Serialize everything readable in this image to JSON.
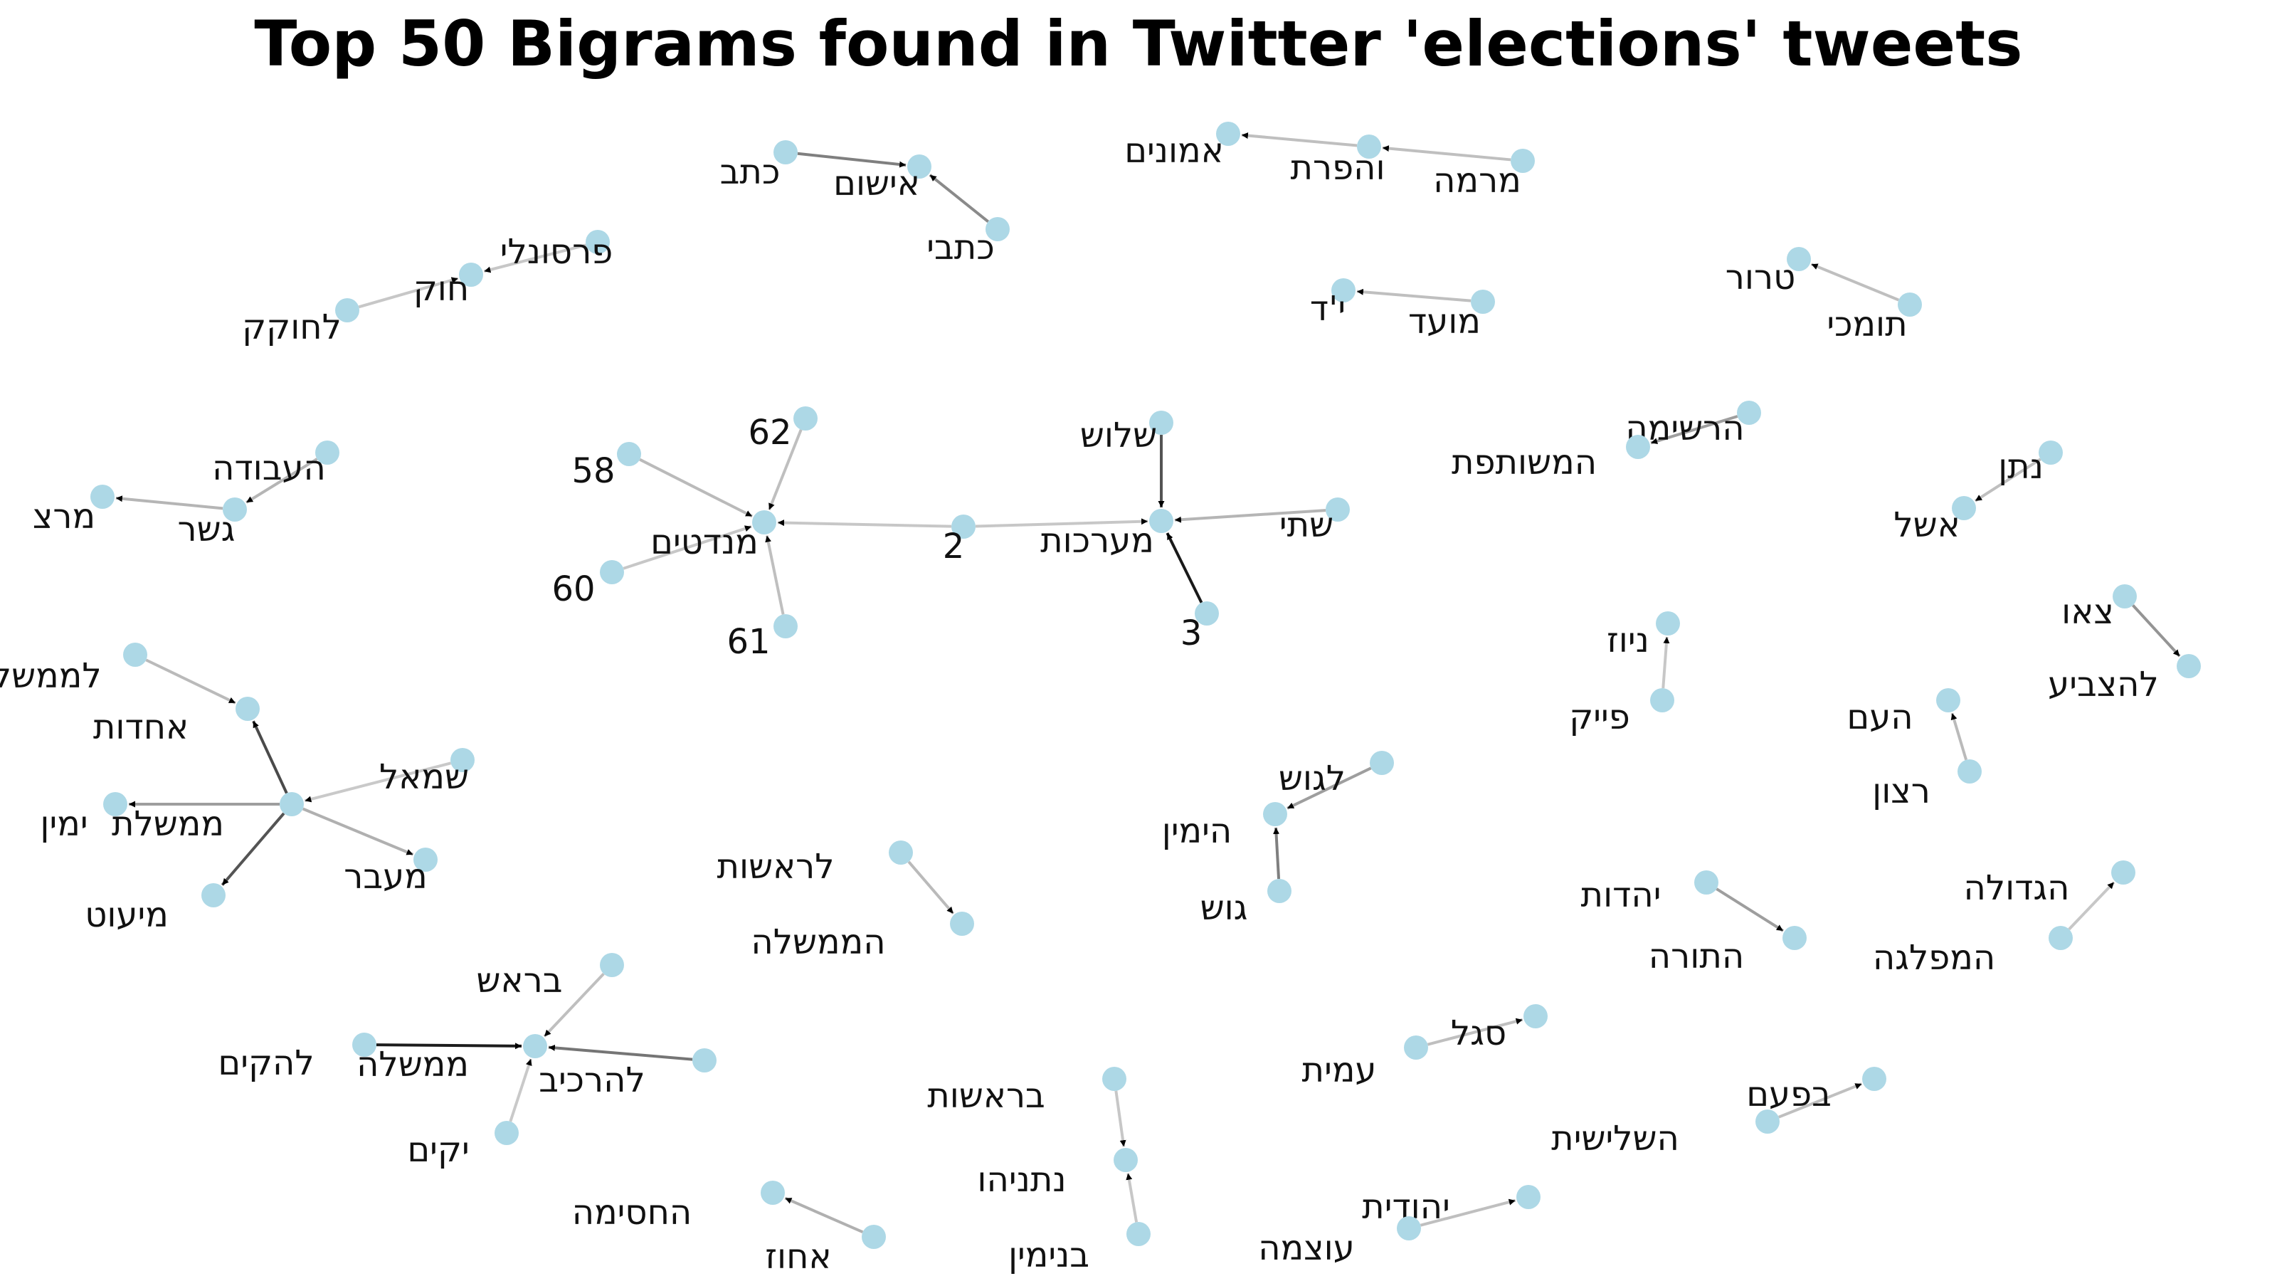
{
  "title": "Top 50 Bigrams found in Twitter 'elections' tweets",
  "colors": {
    "node": "#add8e6",
    "edge": "#000000",
    "text": "#111111",
    "background": "#ffffff"
  },
  "nodes": [
    {
      "id": "katav",
      "label": "כתב"
    },
    {
      "id": "ishum",
      "label": "אישום"
    },
    {
      "id": "kitvei",
      "label": "כתבי"
    },
    {
      "id": "emunim",
      "label": "אמונים"
    },
    {
      "id": "vehafarat",
      "label": "והפרת"
    },
    {
      "id": "mirma",
      "label": "מרמה"
    },
    {
      "id": "personali",
      "label": "פרסונלי"
    },
    {
      "id": "chok",
      "label": "חוק"
    },
    {
      "id": "lechokek",
      "label": "לחוקק"
    },
    {
      "id": "yud",
      "label": "י'ד"
    },
    {
      "id": "moed",
      "label": "מועד"
    },
    {
      "id": "teror",
      "label": "טרור"
    },
    {
      "id": "tomchei",
      "label": "תומכי"
    },
    {
      "id": "haavoda",
      "label": "העבודה"
    },
    {
      "id": "gesher",
      "label": "גשר"
    },
    {
      "id": "meretz",
      "label": "מרצ"
    },
    {
      "id": "n62",
      "label": "62"
    },
    {
      "id": "n58",
      "label": "58"
    },
    {
      "id": "mandatim",
      "label": "מנדטים"
    },
    {
      "id": "n60",
      "label": "60"
    },
    {
      "id": "n61",
      "label": "61"
    },
    {
      "id": "n2",
      "label": "2"
    },
    {
      "id": "shalosh",
      "label": "שלוש"
    },
    {
      "id": "maarachot",
      "label": "מערכות"
    },
    {
      "id": "shtei",
      "label": "שתי"
    },
    {
      "id": "n3",
      "label": "3"
    },
    {
      "id": "hareshima",
      "label": "הרשימה"
    },
    {
      "id": "hameshutefet",
      "label": "המשותפת"
    },
    {
      "id": "natan",
      "label": "נתן"
    },
    {
      "id": "eshel",
      "label": "אשל"
    },
    {
      "id": "tzeu",
      "label": "צאו"
    },
    {
      "id": "lehatzbia",
      "label": "להצביע"
    },
    {
      "id": "leMemshelet",
      "label": "לממשלת"
    },
    {
      "id": "achdut",
      "label": "אחדות"
    },
    {
      "id": "smol",
      "label": "שמאל"
    },
    {
      "id": "yamin",
      "label": "ימין"
    },
    {
      "id": "memshelet",
      "label": "ממשלת"
    },
    {
      "id": "maavar",
      "label": "מעבר"
    },
    {
      "id": "miut",
      "label": "מיעוט"
    },
    {
      "id": "niuz",
      "label": "ניוז"
    },
    {
      "id": "feik",
      "label": "פייק"
    },
    {
      "id": "haam",
      "label": "העם"
    },
    {
      "id": "ratzon",
      "label": "רצון"
    },
    {
      "id": "lagush",
      "label": "לגוש"
    },
    {
      "id": "hayamin",
      "label": "הימין"
    },
    {
      "id": "gush",
      "label": "גוש"
    },
    {
      "id": "larashut",
      "label": "לראשות"
    },
    {
      "id": "hamemshala",
      "label": "הממשלה"
    },
    {
      "id": "yahadut",
      "label": "יהדות"
    },
    {
      "id": "hatora",
      "label": "התורה"
    },
    {
      "id": "hagdola",
      "label": "הגדולה"
    },
    {
      "id": "hamiflaga",
      "label": "המפלגה"
    },
    {
      "id": "berosh",
      "label": "בראש"
    },
    {
      "id": "lehakim",
      "label": "להקים"
    },
    {
      "id": "memshala",
      "label": "ממשלה"
    },
    {
      "id": "leharkiv",
      "label": "להרכיב"
    },
    {
      "id": "yakum",
      "label": "יקים"
    },
    {
      "id": "segal",
      "label": "סגל"
    },
    {
      "id": "amit",
      "label": "עמית"
    },
    {
      "id": "birashut",
      "label": "בראשות"
    },
    {
      "id": "netanyahu",
      "label": "נתניהו"
    },
    {
      "id": "binyamin",
      "label": "בנימין"
    },
    {
      "id": "bapaam",
      "label": "בפעם"
    },
    {
      "id": "hashlishit",
      "label": "השלישית"
    },
    {
      "id": "hachasima",
      "label": "החסימה"
    },
    {
      "id": "achuz",
      "label": "אחוז"
    },
    {
      "id": "yehudit",
      "label": "יהודית"
    },
    {
      "id": "otzma",
      "label": "עוצמה"
    }
  ],
  "edges": [
    {
      "from": "katav",
      "to": "ishum",
      "weight": 0.45
    },
    {
      "from": "kitvei",
      "to": "ishum",
      "weight": 0.4
    },
    {
      "from": "vehafarat",
      "to": "emunim",
      "weight": 0.15
    },
    {
      "from": "mirma",
      "to": "vehafarat",
      "weight": 0.15
    },
    {
      "from": "personali",
      "to": "chok",
      "weight": 0.12
    },
    {
      "from": "lechokek",
      "to": "chok",
      "weight": 0.12
    },
    {
      "from": "moed",
      "to": "yud",
      "weight": 0.15
    },
    {
      "from": "tomchei",
      "to": "teror",
      "weight": 0.15
    },
    {
      "from": "haavoda",
      "to": "gesher",
      "weight": 0.2
    },
    {
      "from": "gesher",
      "to": "meretz",
      "weight": 0.2
    },
    {
      "from": "n62",
      "to": "mandatim",
      "weight": 0.15
    },
    {
      "from": "n58",
      "to": "mandatim",
      "weight": 0.18
    },
    {
      "from": "n60",
      "to": "mandatim",
      "weight": 0.12
    },
    {
      "from": "n61",
      "to": "mandatim",
      "weight": 0.15
    },
    {
      "from": "n2",
      "to": "mandatim",
      "weight": 0.12
    },
    {
      "from": "n2",
      "to": "maarachot",
      "weight": 0.12
    },
    {
      "from": "shalosh",
      "to": "maarachot",
      "weight": 0.65
    },
    {
      "from": "shtei",
      "to": "maarachot",
      "weight": 0.2
    },
    {
      "from": "n3",
      "to": "maarachot",
      "weight": 0.92
    },
    {
      "from": "hareshima",
      "to": "hameshutefet",
      "weight": 0.3
    },
    {
      "from": "natan",
      "to": "eshel",
      "weight": 0.15
    },
    {
      "from": "tzeu",
      "to": "lehatzbia",
      "weight": 0.35
    },
    {
      "from": "leMemshelet",
      "to": "achdut",
      "weight": 0.18
    },
    {
      "from": "memshelet",
      "to": "achdut",
      "weight": 0.7
    },
    {
      "from": "smol",
      "to": "memshelet",
      "weight": 0.1
    },
    {
      "from": "memshelet",
      "to": "yamin",
      "weight": 0.3
    },
    {
      "from": "memshelet",
      "to": "maavar",
      "weight": 0.22
    },
    {
      "from": "memshelet",
      "to": "miut",
      "weight": 0.65
    },
    {
      "from": "feik",
      "to": "niuz",
      "weight": 0.12
    },
    {
      "from": "ratzon",
      "to": "haam",
      "weight": 0.18
    },
    {
      "from": "lagush",
      "to": "hayamin",
      "weight": 0.3
    },
    {
      "from": "gush",
      "to": "hayamin",
      "weight": 0.45
    },
    {
      "from": "larashut",
      "to": "hamemshala",
      "weight": 0.18
    },
    {
      "from": "yahadut",
      "to": "hatora",
      "weight": 0.3
    },
    {
      "from": "hamiflaga",
      "to": "hagdola",
      "weight": 0.12
    },
    {
      "from": "berosh",
      "to": "memshala",
      "weight": 0.15
    },
    {
      "from": "lehakim",
      "to": "memshala",
      "weight": 0.9
    },
    {
      "from": "leharkiv",
      "to": "memshala",
      "weight": 0.5
    },
    {
      "from": "yakum",
      "to": "memshala",
      "weight": 0.1
    },
    {
      "from": "amit",
      "to": "segal",
      "weight": 0.15
    },
    {
      "from": "birashut",
      "to": "netanyahu",
      "weight": 0.12
    },
    {
      "from": "binyamin",
      "to": "netanyahu",
      "weight": 0.12
    },
    {
      "from": "hashlishit",
      "to": "bapaam",
      "weight": 0.15
    },
    {
      "from": "achuz",
      "to": "hachasima",
      "weight": 0.22
    },
    {
      "from": "otzma",
      "to": "yehudit",
      "weight": 0.15
    }
  ]
}
